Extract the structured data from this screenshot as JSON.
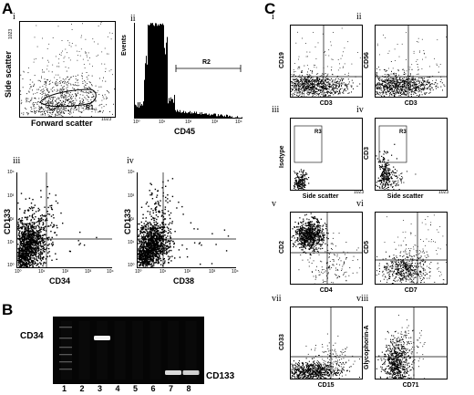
{
  "panels": {
    "A": "A",
    "B": "B",
    "C": "C"
  },
  "colors": {
    "ink": "#000000",
    "paper": "#ffffff",
    "gel": "#050505",
    "band": "#f4f4f4"
  },
  "panelA": [
    {
      "id": "i",
      "label": "i",
      "xlabel": "Forward scatter",
      "ylabel": "Side scatter",
      "ymax": "1023",
      "xmax": "1023",
      "gate": "R1"
    },
    {
      "id": "ii",
      "label": "ii",
      "xlabel": "CD45",
      "ylabel": "Events",
      "gate": "R2",
      "ticks": [
        "10⁰",
        "10¹",
        "10²",
        "10³",
        "10⁴"
      ]
    },
    {
      "id": "iii",
      "label": "iii",
      "xlabel": "CD34",
      "ylabel": "CD133",
      "ticks": [
        "10⁰",
        "10¹",
        "10²",
        "10³",
        "10⁴"
      ]
    },
    {
      "id": "iv",
      "label": "iv",
      "xlabel": "CD38",
      "ylabel": "CD133",
      "ticks": [
        "10⁰",
        "10¹",
        "10²",
        "10³",
        "10⁴"
      ]
    }
  ],
  "panelB": {
    "labels": {
      "cd34": "CD34",
      "cd133": "CD133"
    },
    "lanes": [
      "1",
      "2",
      "3",
      "4",
      "5",
      "6",
      "7",
      "8"
    ],
    "bands": [
      {
        "lane": 3,
        "marker": "CD34",
        "intensity": 1.0
      },
      {
        "lane": 7,
        "marker": "CD133",
        "intensity": 0.9
      },
      {
        "lane": 8,
        "marker": "CD133",
        "intensity": 0.85
      }
    ]
  },
  "panelC": [
    {
      "id": "ci",
      "label": "i",
      "xlabel": "CD3",
      "ylabel": "CD19"
    },
    {
      "id": "cii",
      "label": "ii",
      "xlabel": "CD3",
      "ylabel": "CD56"
    },
    {
      "id": "ciii",
      "label": "iii",
      "xlabel": "Side scatter",
      "ylabel": "Isotype",
      "gate": "R3",
      "xmax": "1023"
    },
    {
      "id": "civ",
      "label": "iv",
      "xlabel": "Side scatter",
      "ylabel": "CD3",
      "gate": "R3",
      "xmax": "1023"
    },
    {
      "id": "cv",
      "label": "v",
      "xlabel": "CD4",
      "ylabel": "CD2"
    },
    {
      "id": "cvi",
      "label": "vi",
      "xlabel": "CD7",
      "ylabel": "CD5"
    },
    {
      "id": "cvii",
      "label": "vii",
      "xlabel": "CD15",
      "ylabel": "CD33"
    },
    {
      "id": "cviii",
      "label": "viii",
      "xlabel": "CD71",
      "ylabel": "Glycophorin-A"
    }
  ],
  "chart_data": {
    "type": "scatter",
    "figure": "composite flow cytometry dot plots, CD45 histogram and RT-PCR gel",
    "histogram": {
      "xlabel": "CD45",
      "ylabel": "Events",
      "scale": "log",
      "gate": "R2"
    },
    "gel_lanes": [
      "1",
      "2",
      "3",
      "4",
      "5",
      "6",
      "7",
      "8"
    ]
  }
}
